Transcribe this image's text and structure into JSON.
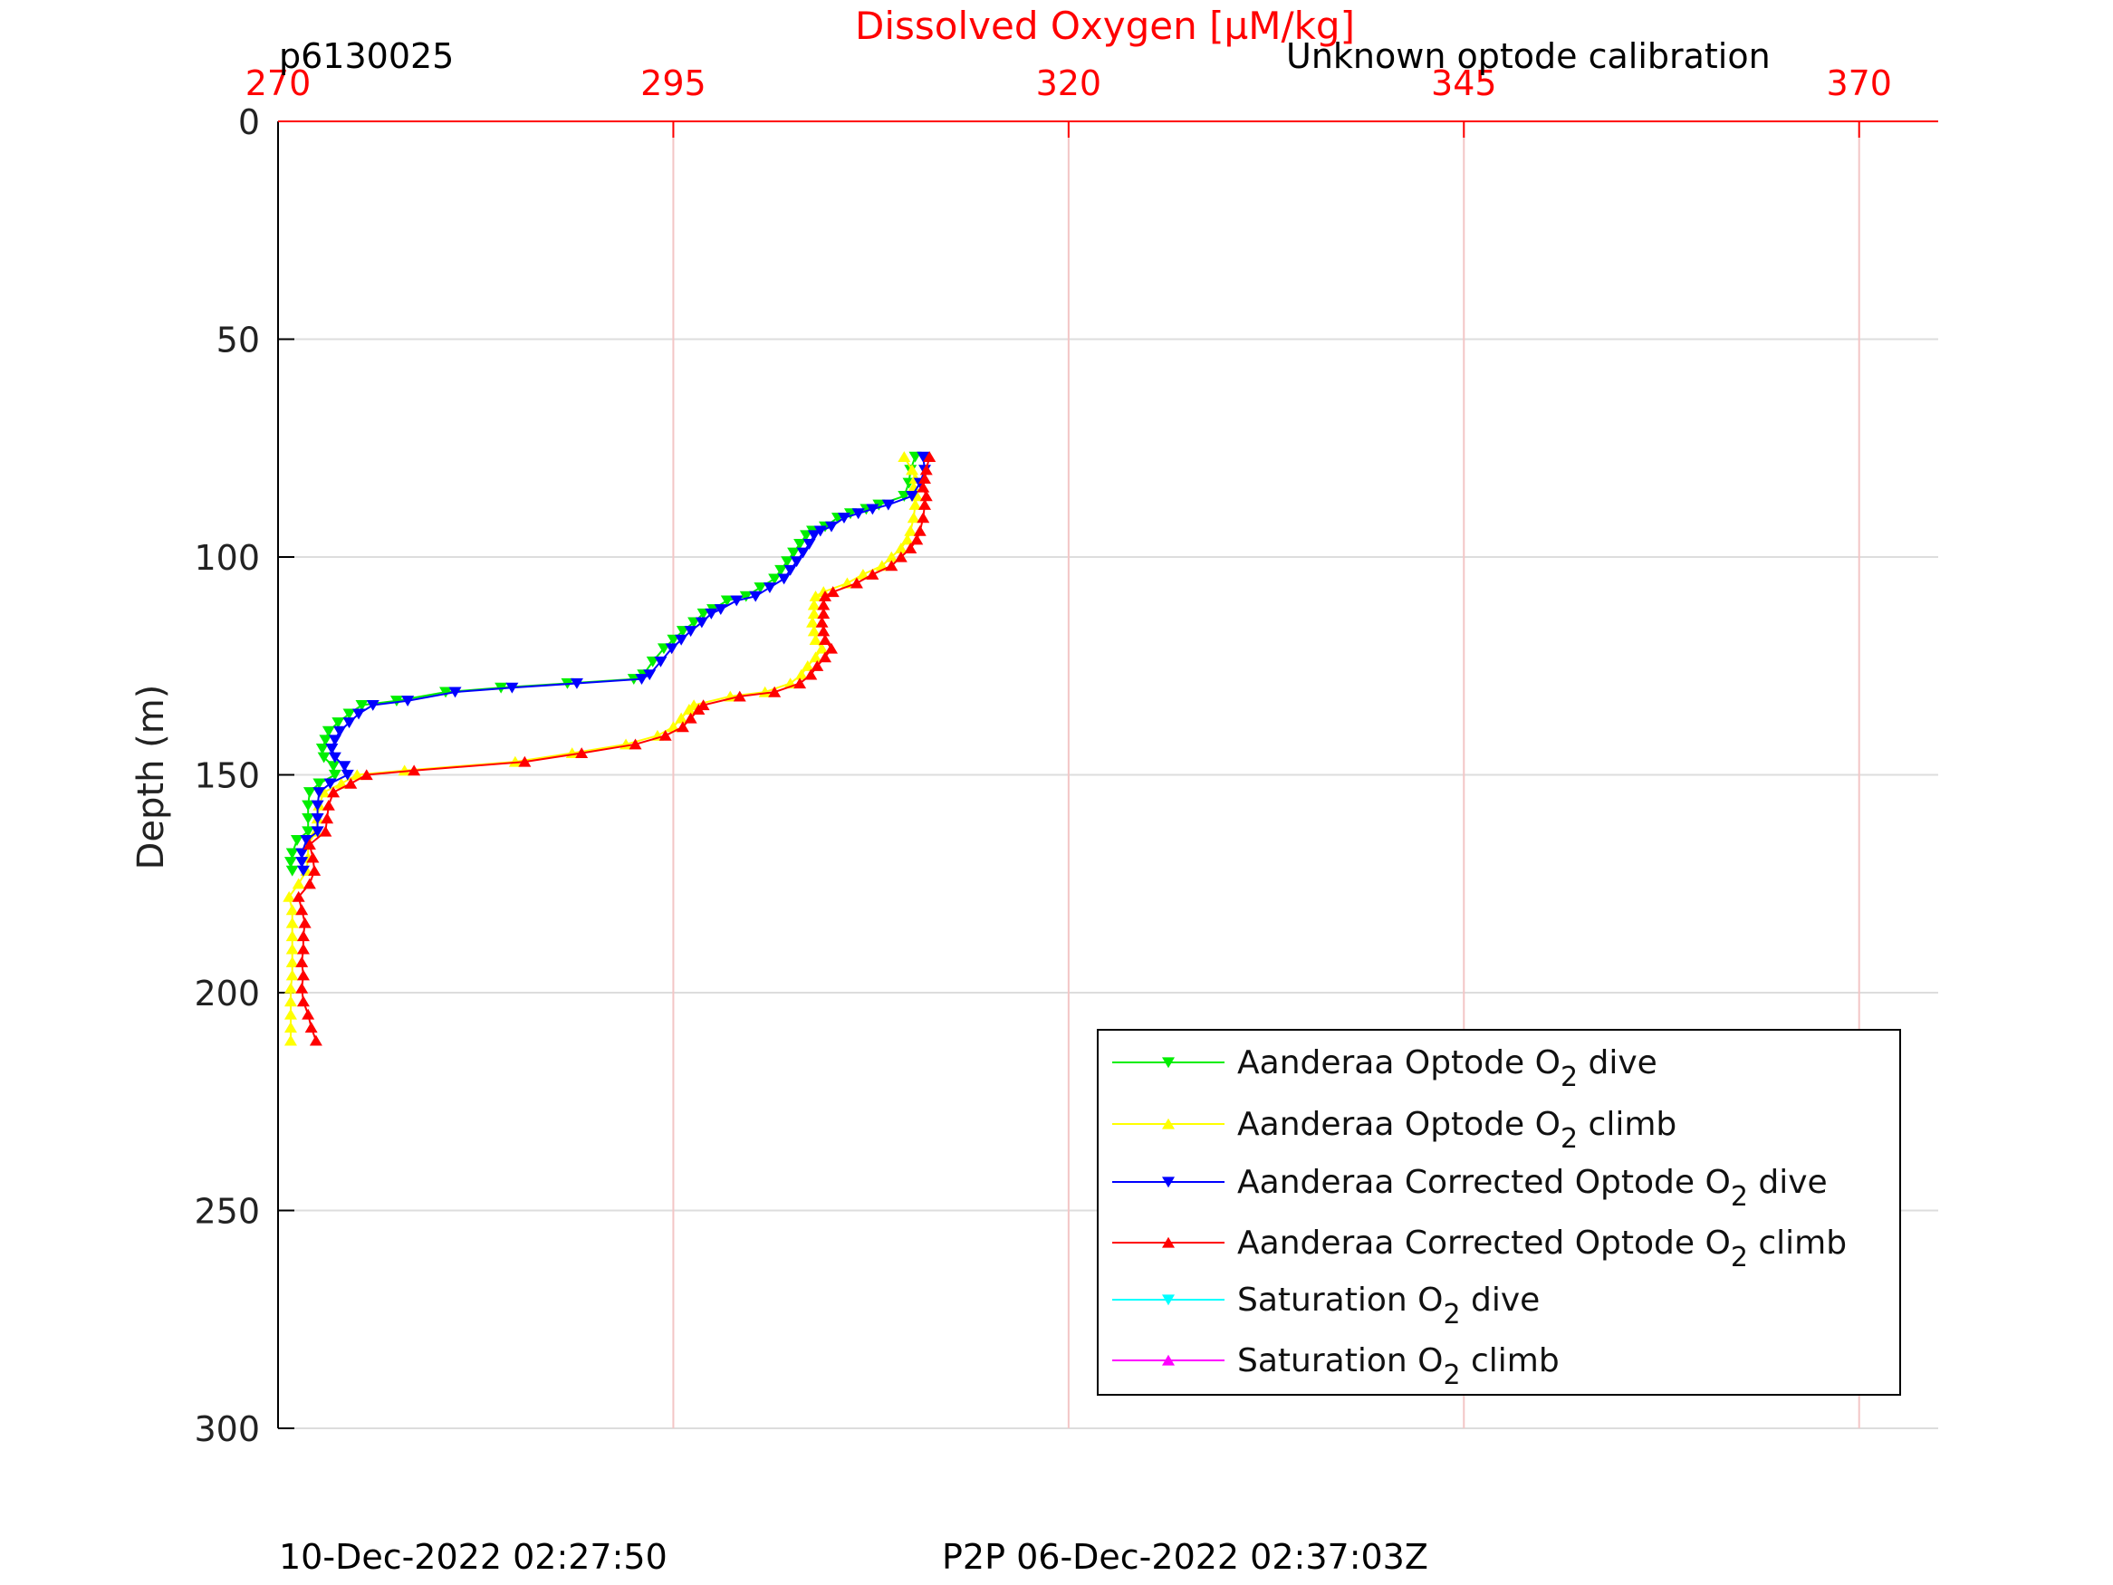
{
  "labels": {
    "profile_id": "p6130025",
    "calibration_note": "Unknown optode calibration",
    "timestamp_left": "10-Dec-2022 02:27:50",
    "timestamp_right": "P2P 06-Dec-2022 02:37:03Z"
  },
  "colors": {
    "top_axis": "#ff0000",
    "grid": "#f3c6c6",
    "hgrid": "#dddddd",
    "axis": "#000000"
  },
  "chart_data": {
    "type": "line",
    "title": "",
    "xlabel": "Dissolved Oxygen [µM/kg]",
    "ylabel": "Depth (m)",
    "x_axis_position": "top",
    "xlim": [
      270,
      375
    ],
    "ylim": [
      0,
      300
    ],
    "y_reversed": true,
    "xticks": [
      270,
      295,
      320,
      345,
      370
    ],
    "yticks": [
      0,
      50,
      100,
      150,
      200,
      250,
      300
    ],
    "legend_location": "lower-right",
    "series": [
      {
        "name": "Aanderaa Optode O2 dive",
        "label_main": "Aanderaa Optode O",
        "label_sub": "2",
        "label_suffix": " dive",
        "color": "#00ee00",
        "marker": "down-triangle",
        "points": [
          [
            310.3,
            77
          ],
          [
            310.0,
            80
          ],
          [
            309.9,
            83
          ],
          [
            309.6,
            86
          ],
          [
            308.0,
            88
          ],
          [
            307.2,
            89
          ],
          [
            306.2,
            90
          ],
          [
            305.4,
            91
          ],
          [
            304.6,
            93
          ],
          [
            303.8,
            94
          ],
          [
            303.4,
            95
          ],
          [
            303.0,
            97
          ],
          [
            302.6,
            99
          ],
          [
            302.2,
            101
          ],
          [
            301.8,
            103
          ],
          [
            301.4,
            105
          ],
          [
            300.5,
            107
          ],
          [
            299.6,
            109
          ],
          [
            298.4,
            110
          ],
          [
            297.5,
            112
          ],
          [
            296.9,
            113
          ],
          [
            296.3,
            115
          ],
          [
            295.6,
            117
          ],
          [
            295.0,
            119
          ],
          [
            294.4,
            121
          ],
          [
            293.7,
            124
          ],
          [
            293.1,
            127
          ],
          [
            292.5,
            128
          ],
          [
            288.3,
            129
          ],
          [
            284.1,
            130
          ],
          [
            280.6,
            131
          ],
          [
            277.5,
            133
          ],
          [
            275.3,
            134
          ],
          [
            274.5,
            136
          ],
          [
            273.8,
            138
          ],
          [
            273.2,
            140
          ],
          [
            273.0,
            142
          ],
          [
            272.8,
            144
          ],
          [
            272.9,
            146
          ],
          [
            273.5,
            148
          ],
          [
            273.6,
            150
          ],
          [
            272.6,
            152
          ],
          [
            272.0,
            154
          ],
          [
            271.9,
            157
          ],
          [
            271.9,
            160
          ],
          [
            271.9,
            163
          ],
          [
            271.2,
            165
          ],
          [
            270.9,
            168
          ],
          [
            270.8,
            170
          ],
          [
            270.9,
            172
          ]
        ]
      },
      {
        "name": "Aanderaa Optode O2 climb",
        "label_main": "Aanderaa Optode O",
        "label_sub": "2",
        "label_suffix": " climb",
        "color": "#ffff00",
        "marker": "up-triangle",
        "points": [
          [
            270.8,
            211
          ],
          [
            270.8,
            208
          ],
          [
            270.8,
            205
          ],
          [
            270.8,
            202
          ],
          [
            270.8,
            199
          ],
          [
            270.9,
            196
          ],
          [
            270.9,
            193
          ],
          [
            270.9,
            190
          ],
          [
            270.9,
            187
          ],
          [
            270.9,
            184
          ],
          [
            270.9,
            181
          ],
          [
            270.7,
            178
          ],
          [
            271.3,
            175
          ],
          [
            271.8,
            172
          ],
          [
            271.9,
            169
          ],
          [
            271.9,
            166
          ],
          [
            272.4,
            163
          ],
          [
            272.5,
            160
          ],
          [
            272.6,
            157
          ],
          [
            272.9,
            154
          ],
          [
            274.0,
            152
          ],
          [
            275.0,
            150
          ],
          [
            278.0,
            149
          ],
          [
            285.0,
            147
          ],
          [
            288.6,
            145
          ],
          [
            292.0,
            143
          ],
          [
            294.0,
            141
          ],
          [
            295.0,
            139
          ],
          [
            295.5,
            137
          ],
          [
            296.0,
            135
          ],
          [
            296.3,
            134
          ],
          [
            298.6,
            132
          ],
          [
            300.8,
            131
          ],
          [
            302.4,
            129
          ],
          [
            303.1,
            127
          ],
          [
            303.5,
            125
          ],
          [
            304.0,
            123
          ],
          [
            304.4,
            121
          ],
          [
            304.0,
            119
          ],
          [
            303.9,
            117
          ],
          [
            303.8,
            115
          ],
          [
            303.9,
            113
          ],
          [
            303.9,
            111
          ],
          [
            304.0,
            109
          ],
          [
            304.5,
            108
          ],
          [
            306.0,
            106
          ],
          [
            307.0,
            104
          ],
          [
            308.2,
            102
          ],
          [
            308.8,
            100
          ],
          [
            309.4,
            98
          ],
          [
            309.8,
            96
          ],
          [
            310.0,
            94
          ],
          [
            310.2,
            91
          ],
          [
            310.3,
            88
          ],
          [
            310.4,
            86
          ],
          [
            310.2,
            84
          ],
          [
            310.3,
            82
          ],
          [
            310.1,
            80
          ],
          [
            309.6,
            77
          ]
        ]
      },
      {
        "name": "Aanderaa Corrected Optode O2 dive",
        "label_main": "Aanderaa Corrected Optode O",
        "label_sub": "2",
        "label_suffix": " dive",
        "color": "#0000ff",
        "marker": "down-triangle",
        "points": [
          [
            310.8,
            77
          ],
          [
            310.9,
            80
          ],
          [
            310.6,
            83
          ],
          [
            310.1,
            86
          ],
          [
            308.6,
            88
          ],
          [
            307.6,
            89
          ],
          [
            306.7,
            90
          ],
          [
            305.8,
            91
          ],
          [
            305.0,
            93
          ],
          [
            304.3,
            94
          ],
          [
            303.9,
            95
          ],
          [
            303.6,
            97
          ],
          [
            303.2,
            99
          ],
          [
            302.8,
            101
          ],
          [
            302.4,
            103
          ],
          [
            302.0,
            105
          ],
          [
            301.1,
            107
          ],
          [
            300.2,
            109
          ],
          [
            299.0,
            110
          ],
          [
            298.0,
            112
          ],
          [
            297.4,
            113
          ],
          [
            296.8,
            115
          ],
          [
            296.1,
            117
          ],
          [
            295.5,
            119
          ],
          [
            294.9,
            121
          ],
          [
            294.2,
            124
          ],
          [
            293.5,
            127
          ],
          [
            293.0,
            128
          ],
          [
            288.9,
            129
          ],
          [
            284.8,
            130
          ],
          [
            281.2,
            131
          ],
          [
            278.2,
            133
          ],
          [
            276.0,
            134
          ],
          [
            275.1,
            136
          ],
          [
            274.5,
            138
          ],
          [
            273.9,
            140
          ],
          [
            273.6,
            142
          ],
          [
            273.4,
            144
          ],
          [
            273.6,
            146
          ],
          [
            274.2,
            148
          ],
          [
            274.4,
            150
          ],
          [
            273.3,
            152
          ],
          [
            272.6,
            154
          ],
          [
            272.5,
            157
          ],
          [
            272.5,
            160
          ],
          [
            272.5,
            163
          ],
          [
            271.8,
            165
          ],
          [
            271.5,
            168
          ],
          [
            271.5,
            170
          ],
          [
            271.6,
            172
          ]
        ]
      },
      {
        "name": "Aanderaa Corrected Optode O2 climb",
        "label_main": "Aanderaa Corrected Optode O",
        "label_sub": "2",
        "label_suffix": " climb",
        "color": "#ff0000",
        "marker": "up-triangle",
        "points": [
          [
            272.4,
            211
          ],
          [
            272.1,
            208
          ],
          [
            271.9,
            205
          ],
          [
            271.6,
            202
          ],
          [
            271.5,
            199
          ],
          [
            271.6,
            196
          ],
          [
            271.5,
            193
          ],
          [
            271.6,
            190
          ],
          [
            271.6,
            187
          ],
          [
            271.7,
            184
          ],
          [
            271.5,
            181
          ],
          [
            271.3,
            178
          ],
          [
            272.0,
            175
          ],
          [
            272.3,
            172
          ],
          [
            272.2,
            169
          ],
          [
            272.0,
            166
          ],
          [
            273.0,
            163
          ],
          [
            273.1,
            160
          ],
          [
            273.2,
            157
          ],
          [
            273.5,
            154
          ],
          [
            274.6,
            152
          ],
          [
            275.6,
            150
          ],
          [
            278.6,
            149
          ],
          [
            285.6,
            147
          ],
          [
            289.2,
            145
          ],
          [
            292.6,
            143
          ],
          [
            294.5,
            141
          ],
          [
            295.6,
            139
          ],
          [
            296.1,
            137
          ],
          [
            296.6,
            135
          ],
          [
            296.9,
            134
          ],
          [
            299.2,
            132
          ],
          [
            301.4,
            131
          ],
          [
            303.0,
            129
          ],
          [
            303.7,
            127
          ],
          [
            304.1,
            125
          ],
          [
            304.6,
            123
          ],
          [
            305.0,
            121
          ],
          [
            304.6,
            119
          ],
          [
            304.5,
            117
          ],
          [
            304.4,
            115
          ],
          [
            304.5,
            113
          ],
          [
            304.5,
            111
          ],
          [
            304.6,
            109
          ],
          [
            305.1,
            108
          ],
          [
            306.6,
            106
          ],
          [
            307.6,
            104
          ],
          [
            308.8,
            102
          ],
          [
            309.4,
            100
          ],
          [
            310.0,
            98
          ],
          [
            310.4,
            96
          ],
          [
            310.6,
            94
          ],
          [
            310.8,
            91
          ],
          [
            310.9,
            88
          ],
          [
            311.0,
            86
          ],
          [
            310.8,
            84
          ],
          [
            310.9,
            82
          ],
          [
            311.0,
            80
          ],
          [
            311.2,
            77
          ]
        ]
      },
      {
        "name": "Saturation O2 dive",
        "label_main": "Saturation O",
        "label_sub": "2",
        "label_suffix": " dive",
        "color": "#00ffff",
        "marker": "down-triangle",
        "points": []
      },
      {
        "name": "Saturation O2 climb",
        "label_main": "Saturation O",
        "label_sub": "2",
        "label_suffix": " climb",
        "color": "#ff00ff",
        "marker": "up-triangle",
        "points": []
      }
    ]
  }
}
